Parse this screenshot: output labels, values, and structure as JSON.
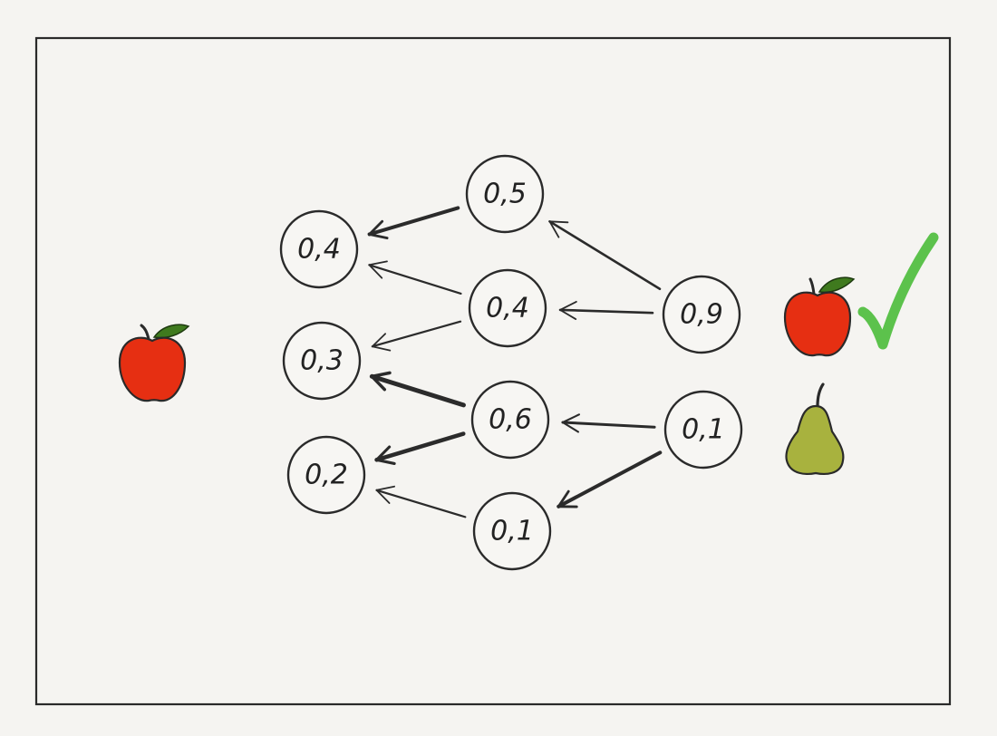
{
  "colors": {
    "background": "#f5f4f1",
    "frame": "#2a2a2a",
    "apple": "#e62f12",
    "pear": "#a8b23e",
    "leaf": "#3f7a1e",
    "check": "#5cc24c"
  },
  "icons": {
    "input": "apple-icon",
    "output_top": "apple-icon",
    "output_bottom": "pear-icon",
    "result": "check-mark-icon"
  },
  "diagram": {
    "nodes": [
      {
        "id": "in-1",
        "layer": "input",
        "label": "0,4"
      },
      {
        "id": "in-2",
        "layer": "input",
        "label": "0,3"
      },
      {
        "id": "in-3",
        "layer": "input",
        "label": "0,2"
      },
      {
        "id": "hid-1",
        "layer": "hidden",
        "label": "0,5"
      },
      {
        "id": "hid-2",
        "layer": "hidden",
        "label": "0,4"
      },
      {
        "id": "hid-3",
        "layer": "hidden",
        "label": "0,6"
      },
      {
        "id": "hid-4",
        "layer": "hidden",
        "label": "0,1"
      },
      {
        "id": "out-1",
        "layer": "output",
        "label": "0,9"
      },
      {
        "id": "out-2",
        "layer": "output",
        "label": "0,1"
      }
    ],
    "edges": [
      {
        "from": "hid-1",
        "to": "in-1"
      },
      {
        "from": "hid-2",
        "to": "in-1"
      },
      {
        "from": "hid-2",
        "to": "in-2"
      },
      {
        "from": "hid-3",
        "to": "in-2"
      },
      {
        "from": "hid-3",
        "to": "in-3"
      },
      {
        "from": "hid-4",
        "to": "in-3"
      },
      {
        "from": "out-1",
        "to": "hid-1"
      },
      {
        "from": "out-1",
        "to": "hid-2"
      },
      {
        "from": "out-2",
        "to": "hid-3"
      },
      {
        "from": "out-2",
        "to": "hid-4"
      }
    ]
  }
}
